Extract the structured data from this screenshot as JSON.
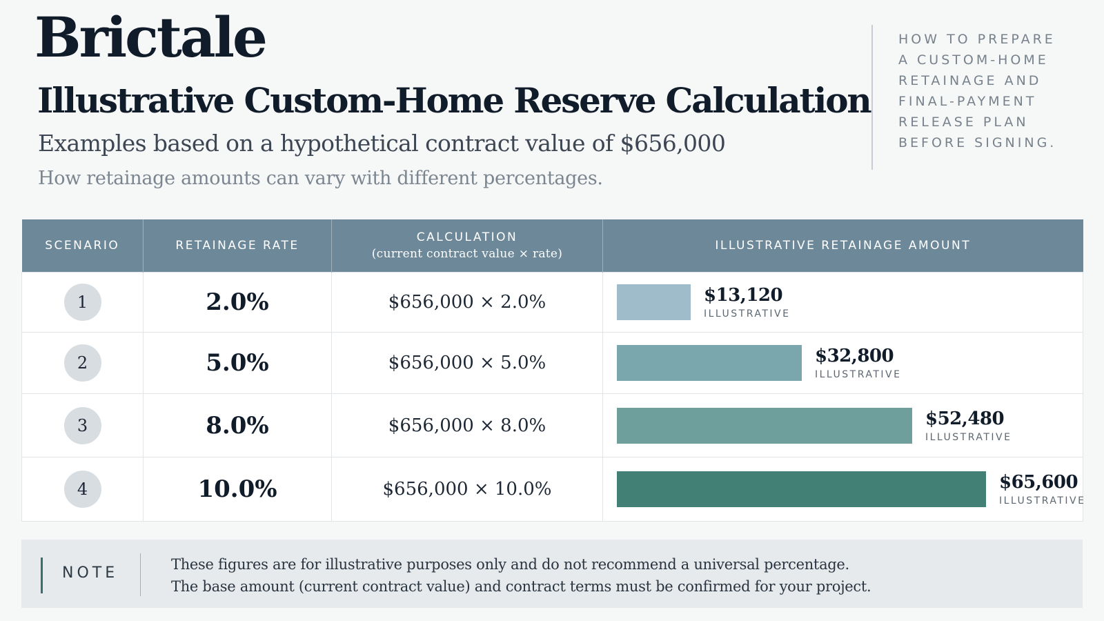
{
  "brand": "Brictale",
  "title": "Illustrative Custom-Home Reserve Calculation",
  "subtitle": "Examples based on a hypothetical contract value of $656,000",
  "subsubtitle": "How retainage amounts can vary with different percentages.",
  "side_note": {
    "lines": [
      "HOW TO PREPARE",
      "A CUSTOM-HOME",
      "RETAINAGE AND",
      "FINAL-PAYMENT",
      "RELEASE PLAN",
      "BEFORE SIGNING."
    ]
  },
  "table": {
    "headers": {
      "scenario": "SCENARIO",
      "rate": "RETAINAGE RATE",
      "calc": "CALCULATION",
      "calc_sub": "(current contract value × rate)",
      "amount": "ILLUSTRATIVE RETAINAGE AMOUNT"
    },
    "rows": [
      {
        "scenario": "1",
        "rate": "2.0%",
        "calc": "$656,000 × 2.0%",
        "amount": "$13,120",
        "tag": "ILLUSTRATIVE"
      },
      {
        "scenario": "2",
        "rate": "5.0%",
        "calc": "$656,000 × 5.0%",
        "amount": "$32,800",
        "tag": "ILLUSTRATIVE"
      },
      {
        "scenario": "3",
        "rate": "8.0%",
        "calc": "$656,000 × 8.0%",
        "amount": "$52,480",
        "tag": "ILLUSTRATIVE"
      },
      {
        "scenario": "4",
        "rate": "10.0%",
        "calc": "$656,000 × 10.0%",
        "amount": "$65,600",
        "tag": "ILLUSTRATIVE"
      }
    ]
  },
  "chart_data": {
    "type": "bar",
    "categories": [
      "1",
      "2",
      "3",
      "4"
    ],
    "values": [
      13120,
      32800,
      52480,
      65600
    ],
    "value_labels": [
      "$13,120",
      "$32,800",
      "$52,480",
      "$65,600"
    ],
    "bar_colors": [
      "#9fbccb",
      "#7aa7ad",
      "#6f9f9c",
      "#427f75"
    ]
  },
  "note": {
    "label": "NOTE",
    "line1": "These figures are for illustrative purposes only and do not recommend a universal percentage.",
    "line2": "The base amount (current contract value) and contract terms must be confirmed for your project."
  }
}
